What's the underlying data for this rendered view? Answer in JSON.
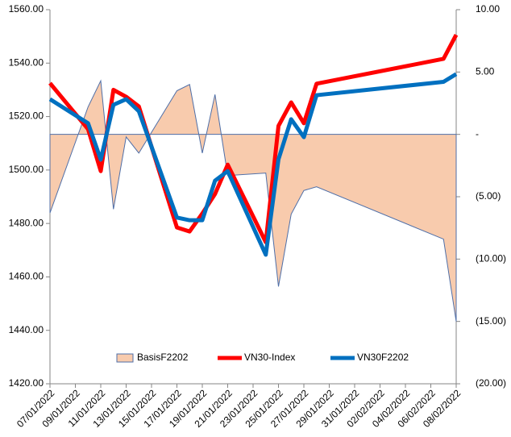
{
  "chart_data": {
    "type": "combo",
    "x": [
      "07/01/2022",
      "10/01/2022",
      "11/01/2022",
      "12/01/2022",
      "13/01/2022",
      "14/01/2022",
      "17/01/2022",
      "18/01/2022",
      "19/01/2022",
      "20/01/2022",
      "21/01/2022",
      "24/01/2022",
      "25/01/2022",
      "26/01/2022",
      "27/01/2022",
      "28/01/2022",
      "07/02/2022",
      "08/02/2022"
    ],
    "xticks": [
      "07/01/2022",
      "09/01/2022",
      "11/01/2022",
      "13/01/2022",
      "15/01/2022",
      "17/01/2022",
      "19/01/2022",
      "21/01/2022",
      "23/01/2022",
      "25/01/2022",
      "27/01/2022",
      "29/01/2022",
      "31/01/2022",
      "02/02/2022",
      "04/02/2022",
      "06/02/2022",
      "08/02/2022"
    ],
    "series": [
      {
        "name": "BasisF2202",
        "kind": "area",
        "axis": "y2",
        "color": "#f8cbad",
        "values": [
          -6.3,
          2.2,
          4.3,
          -6.0,
          -0.2,
          -1.5,
          3.5,
          4.0,
          -1.5,
          3.2,
          -3.3,
          -3.1,
          -12.2,
          -6.4,
          -4.5,
          -4.2,
          -8.4,
          -15.0
        ]
      },
      {
        "name": "VN30-Index",
        "kind": "line",
        "color": "#ff0000",
        "values": [
          1532.5,
          1515.3,
          1499.6,
          1530.0,
          1527.4,
          1523.8,
          1478.5,
          1477.0,
          1483.7,
          1491.0,
          1502.0,
          1473.0,
          1516.5,
          1525.3,
          1517.5,
          1532.3,
          1541.6,
          1550.6
        ]
      },
      {
        "name": "VN30F2202",
        "kind": "line",
        "color": "#0070c0",
        "values": [
          1526.5,
          1517.5,
          1503.9,
          1524.4,
          1526.5,
          1522.0,
          1482.2,
          1481.2,
          1481.2,
          1496.0,
          1499.6,
          1468.3,
          1504.0,
          1519.0,
          1512.3,
          1528.0,
          1533.0,
          1535.9
        ]
      }
    ],
    "ylim": [
      1420,
      1560
    ],
    "yticks": [
      {
        "value": 1420,
        "label": "1420.00"
      },
      {
        "value": 1440,
        "label": "1440.00"
      },
      {
        "value": 1460,
        "label": "1460.00"
      },
      {
        "value": 1480,
        "label": "1480.00"
      },
      {
        "value": 1500,
        "label": "1500.00"
      },
      {
        "value": 1520,
        "label": "1520.00"
      },
      {
        "value": 1540,
        "label": "1540.00"
      },
      {
        "value": 1560,
        "label": "1560.00"
      }
    ],
    "y2lim": [
      -20,
      10
    ],
    "y2ticks": [
      {
        "value": -20,
        "label": "(20.00)"
      },
      {
        "value": -15,
        "label": "(15.00)"
      },
      {
        "value": -10,
        "label": "(10.00)"
      },
      {
        "value": -5,
        "label": "(5.00)"
      },
      {
        "value": 0,
        "label": "-"
      },
      {
        "value": 5,
        "label": "5.00"
      },
      {
        "value": 10,
        "label": "10.00"
      }
    ],
    "legend": "bottom"
  }
}
